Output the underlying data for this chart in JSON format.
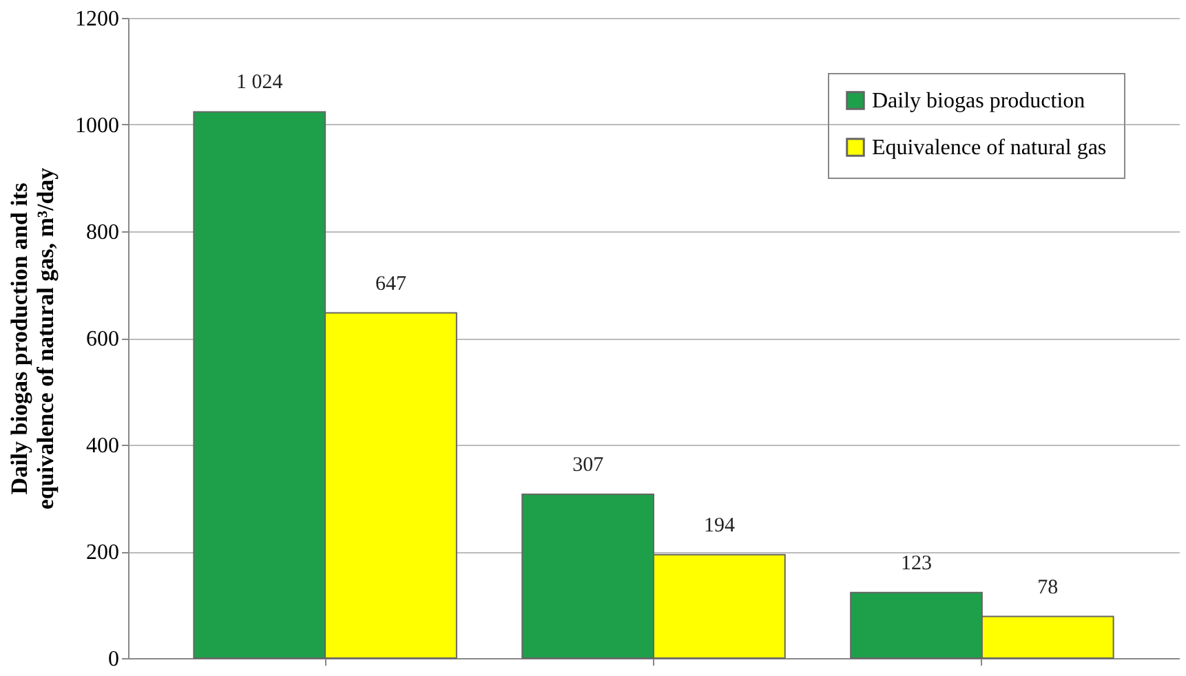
{
  "chart_data": {
    "type": "bar",
    "ylabel": "Daily biogas production and its equivalence of natural gas, m³/day",
    "categories": [
      null,
      null,
      null
    ],
    "series": [
      {
        "name": "Daily biogas production",
        "color": "#1ea04a",
        "values": [
          1024,
          307,
          123
        ],
        "value_labels": [
          "1 024",
          "307",
          "123"
        ]
      },
      {
        "name": "Equivalence of natural gas",
        "color": "#ffff00",
        "values": [
          647,
          194,
          78
        ],
        "value_labels": [
          "647",
          "194",
          "78"
        ]
      }
    ],
    "ylim": [
      0,
      1200
    ],
    "yticks": [
      0,
      200,
      400,
      600,
      800,
      1000,
      1200
    ],
    "grid": "y",
    "legend": "top right"
  }
}
